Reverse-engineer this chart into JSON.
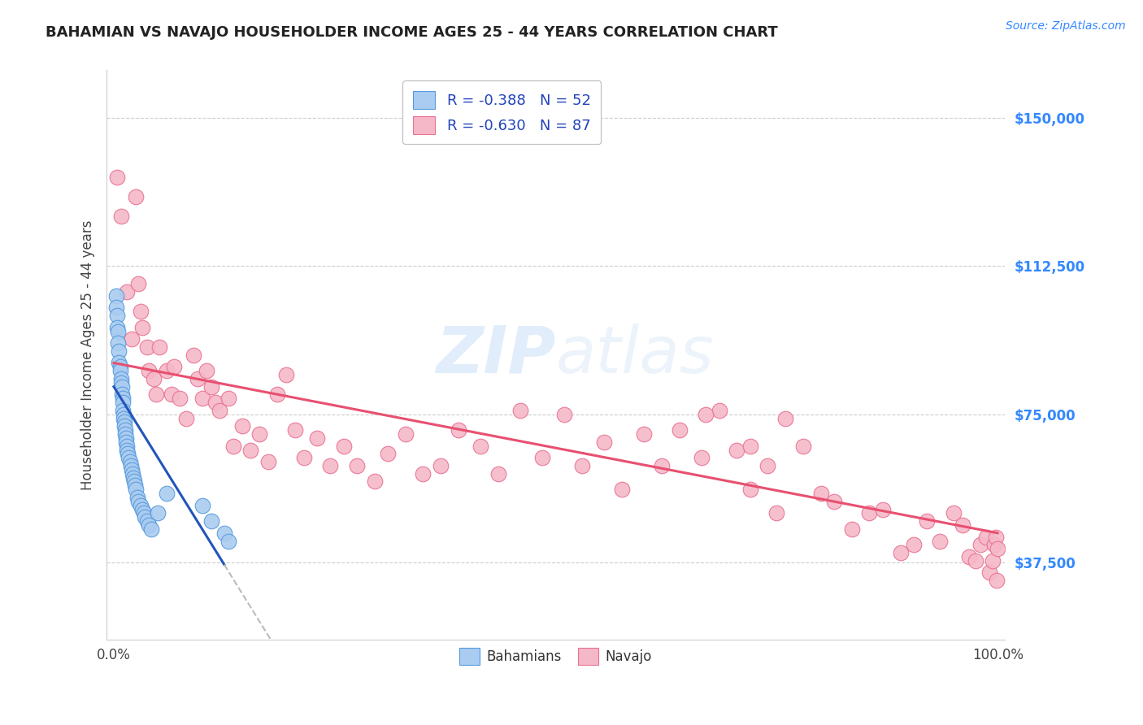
{
  "title": "BAHAMIAN VS NAVAJO HOUSEHOLDER INCOME AGES 25 - 44 YEARS CORRELATION CHART",
  "source": "Source: ZipAtlas.com",
  "ylabel": "Householder Income Ages 25 - 44 years",
  "xmin": 0.0,
  "xmax": 1.0,
  "ymin": 18000,
  "ymax": 162000,
  "yticks": [
    37500,
    75000,
    112500,
    150000
  ],
  "ytick_labels": [
    "$37,500",
    "$75,000",
    "$112,500",
    "$150,000"
  ],
  "watermark": "ZIPatlas",
  "bahamian_color": "#aaccf0",
  "navajo_color": "#f5b8c8",
  "bahamian_edge_color": "#5599dd",
  "navajo_edge_color": "#e87090",
  "bahamian_line_color": "#2255bb",
  "navajo_line_color": "#e85070",
  "legend_R_bahamian": "R = -0.388",
  "legend_N_bahamian": "N = 52",
  "legend_R_navajo": "R = -0.630",
  "legend_N_navajo": "N = 87",
  "bah_line_x0": 0.0,
  "bah_line_y0": 82000,
  "bah_line_x1": 0.125,
  "bah_line_y1": 37000,
  "bah_line_dash_x1": 0.27,
  "nav_line_x0": 0.0,
  "nav_line_y0": 88000,
  "nav_line_x1": 1.0,
  "nav_line_y1": 45000,
  "bahamian_x": [
    0.003,
    0.003,
    0.004,
    0.004,
    0.005,
    0.005,
    0.006,
    0.006,
    0.007,
    0.007,
    0.008,
    0.008,
    0.009,
    0.009,
    0.01,
    0.01,
    0.01,
    0.011,
    0.011,
    0.012,
    0.012,
    0.013,
    0.013,
    0.014,
    0.014,
    0.015,
    0.015,
    0.016,
    0.017,
    0.018,
    0.019,
    0.02,
    0.021,
    0.022,
    0.023,
    0.024,
    0.025,
    0.027,
    0.028,
    0.03,
    0.032,
    0.034,
    0.035,
    0.038,
    0.04,
    0.042,
    0.05,
    0.06,
    0.1,
    0.11,
    0.125,
    0.13
  ],
  "bahamian_y": [
    105000,
    102000,
    100000,
    97000,
    96000,
    93000,
    91000,
    88000,
    87000,
    86000,
    84000,
    83000,
    82000,
    80000,
    79000,
    78000,
    76000,
    75000,
    74000,
    73000,
    72000,
    71000,
    70000,
    69000,
    68000,
    67000,
    66000,
    65000,
    64000,
    63000,
    62000,
    61000,
    60000,
    59000,
    58000,
    57000,
    56000,
    54000,
    53000,
    52000,
    51000,
    50000,
    49000,
    48000,
    47000,
    46000,
    50000,
    55000,
    52000,
    48000,
    45000,
    43000
  ],
  "navajo_x": [
    0.004,
    0.008,
    0.015,
    0.02,
    0.025,
    0.028,
    0.03,
    0.032,
    0.038,
    0.04,
    0.045,
    0.048,
    0.052,
    0.06,
    0.065,
    0.068,
    0.075,
    0.082,
    0.09,
    0.095,
    0.1,
    0.105,
    0.11,
    0.115,
    0.12,
    0.13,
    0.135,
    0.145,
    0.155,
    0.165,
    0.175,
    0.185,
    0.195,
    0.205,
    0.215,
    0.23,
    0.245,
    0.26,
    0.275,
    0.295,
    0.31,
    0.33,
    0.35,
    0.37,
    0.39,
    0.415,
    0.435,
    0.46,
    0.485,
    0.51,
    0.53,
    0.555,
    0.575,
    0.6,
    0.62,
    0.64,
    0.665,
    0.685,
    0.705,
    0.72,
    0.74,
    0.76,
    0.78,
    0.8,
    0.815,
    0.835,
    0.855,
    0.87,
    0.89,
    0.905,
    0.92,
    0.935,
    0.95,
    0.96,
    0.968,
    0.975,
    0.981,
    0.987,
    0.991,
    0.994,
    0.996,
    0.998,
    0.999,
    1.0,
    0.67,
    0.72,
    0.75
  ],
  "navajo_y": [
    135000,
    125000,
    106000,
    94000,
    130000,
    108000,
    101000,
    97000,
    92000,
    86000,
    84000,
    80000,
    92000,
    86000,
    80000,
    87000,
    79000,
    74000,
    90000,
    84000,
    79000,
    86000,
    82000,
    78000,
    76000,
    79000,
    67000,
    72000,
    66000,
    70000,
    63000,
    80000,
    85000,
    71000,
    64000,
    69000,
    62000,
    67000,
    62000,
    58000,
    65000,
    70000,
    60000,
    62000,
    71000,
    67000,
    60000,
    76000,
    64000,
    75000,
    62000,
    68000,
    56000,
    70000,
    62000,
    71000,
    64000,
    76000,
    66000,
    56000,
    62000,
    74000,
    67000,
    55000,
    53000,
    46000,
    50000,
    51000,
    40000,
    42000,
    48000,
    43000,
    50000,
    47000,
    39000,
    38000,
    42000,
    44000,
    35000,
    38000,
    42000,
    44000,
    33000,
    41000,
    75000,
    67000,
    50000
  ]
}
